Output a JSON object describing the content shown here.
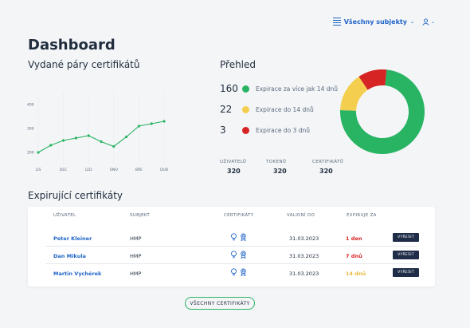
{
  "header": {
    "subjects_label": "Všechny subjekty",
    "page_title": "Dashboard"
  },
  "sections": {
    "pairs_title": "Vydané páry certifikátů",
    "overview_title": "Přehled",
    "expiring_title": "Expirující certifikáty"
  },
  "chart_data": [
    {
      "type": "line",
      "title": "Vydané páry certifikátů",
      "categories": [
        "LIS",
        "DEC",
        "LED",
        "ÚNO",
        "BŘE",
        "DUB"
      ],
      "x": [
        0,
        0.5,
        1,
        1.5,
        2,
        2.5,
        3,
        3.5,
        4,
        4.5,
        5
      ],
      "values": [
        200,
        230,
        250,
        260,
        270,
        245,
        225,
        265,
        310,
        320,
        330
      ],
      "yticks": [
        200,
        300,
        400
      ],
      "ylim": [
        150,
        450
      ],
      "grid": "vertical",
      "colors": {
        "line": "#28b463"
      }
    },
    {
      "type": "pie",
      "variant": "donut",
      "categories": [
        "Expirace za více jak 14 dnů",
        "Expirace do 14 dnů",
        "Expirace do 3 dnů"
      ],
      "values": [
        160,
        22,
        3
      ],
      "visual_fractions": [
        0.74,
        0.15,
        0.11
      ],
      "colors": [
        "#28b463",
        "#f4cf4f",
        "#d62424"
      ]
    }
  ],
  "legend": [
    {
      "count": "160",
      "label": "Expirace za více jak 14 dnů",
      "color": "#28b463"
    },
    {
      "count": "22",
      "label": "Expirace do 14 dnů",
      "color": "#f4cf4f"
    },
    {
      "count": "3",
      "label": "Expirace do 3 dnů",
      "color": "#d62424"
    }
  ],
  "stats": [
    {
      "label": "UŽIVATELŮ",
      "value": "320"
    },
    {
      "label": "TOKENŮ",
      "value": "320"
    },
    {
      "label": "CERTIFIKÁTŮ",
      "value": "320"
    }
  ],
  "table": {
    "headers": [
      "UŽIVATEL",
      "SUBJEKT",
      "CERTIFIKÁTY",
      "VALIDNÍ DO",
      "EXPIRUJE ZA"
    ],
    "rows": [
      {
        "user": "Peter Kleiner",
        "subject": "HMP",
        "valid_to": "31.03.2023",
        "expires": "1 den",
        "expires_color": "#d62424",
        "action": "VYŘEŠIT"
      },
      {
        "user": "Dan Mikula",
        "subject": "HMP",
        "valid_to": "31.03.2023",
        "expires": "7 dnů",
        "expires_color": "#d62424",
        "action": "VYŘEŠIT"
      },
      {
        "user": "Martin Vychérek",
        "subject": "HMP",
        "valid_to": "31.03.2023",
        "expires": "14 dnů",
        "expires_color": "#e8b93a",
        "action": "VYŘEŠIT"
      }
    ]
  },
  "footer": {
    "all_certs_label": "VŠECHNY CERTIFIKÁTY"
  },
  "icons": {
    "subjects": "list-icon",
    "user": "user-icon",
    "cert_a": "lightbulb-icon",
    "cert_b": "certificate-badge-icon"
  }
}
